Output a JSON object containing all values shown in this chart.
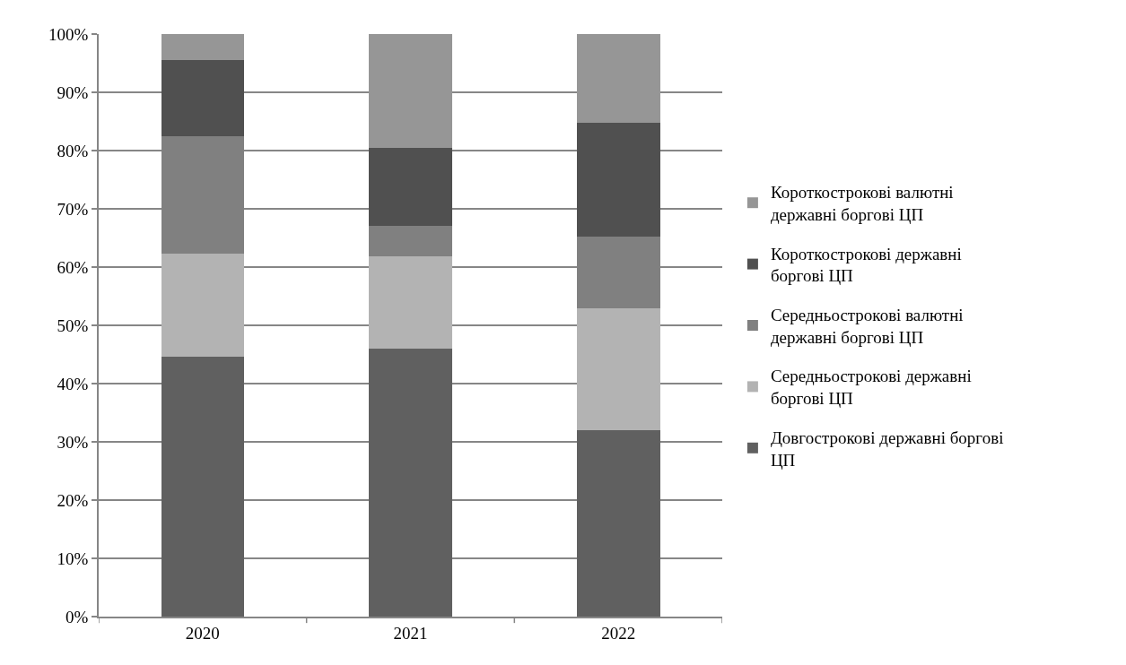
{
  "chart_data": {
    "type": "bar",
    "stacked": true,
    "categories": [
      "2020",
      "2021",
      "2022"
    ],
    "series": [
      {
        "name": "Довгострокові державні боргові ЦП",
        "color": "#606060",
        "values": [
          44.6,
          46.0,
          32.0
        ]
      },
      {
        "name": "Середньострокові державні боргові ЦП",
        "color": "#b3b3b3",
        "values": [
          17.7,
          15.8,
          20.9
        ]
      },
      {
        "name": "Середньострокові валютні державні боргові ЦП",
        "color": "#808080",
        "values": [
          20.1,
          5.3,
          12.4
        ]
      },
      {
        "name": "Короткострокові державні боргові ЦП",
        "color": "#505050",
        "values": [
          13.1,
          13.3,
          19.4
        ]
      },
      {
        "name": "Короткострокові валютні державні боргові ЦП",
        "color": "#969696",
        "values": [
          4.5,
          19.6,
          15.3
        ]
      }
    ],
    "ylim": [
      0,
      100
    ],
    "yticks": [
      {
        "value": 0,
        "label": "0%"
      },
      {
        "value": 10,
        "label": "10%"
      },
      {
        "value": 20,
        "label": "20%"
      },
      {
        "value": 30,
        "label": "30%"
      },
      {
        "value": 40,
        "label": "40%"
      },
      {
        "value": 50,
        "label": "50%"
      },
      {
        "value": 60,
        "label": "60%"
      },
      {
        "value": 70,
        "label": "70%"
      },
      {
        "value": 80,
        "label": "80%"
      },
      {
        "value": 90,
        "label": "90%"
      },
      {
        "value": 100,
        "label": "100%"
      }
    ],
    "grid": "y",
    "legend": "right"
  }
}
